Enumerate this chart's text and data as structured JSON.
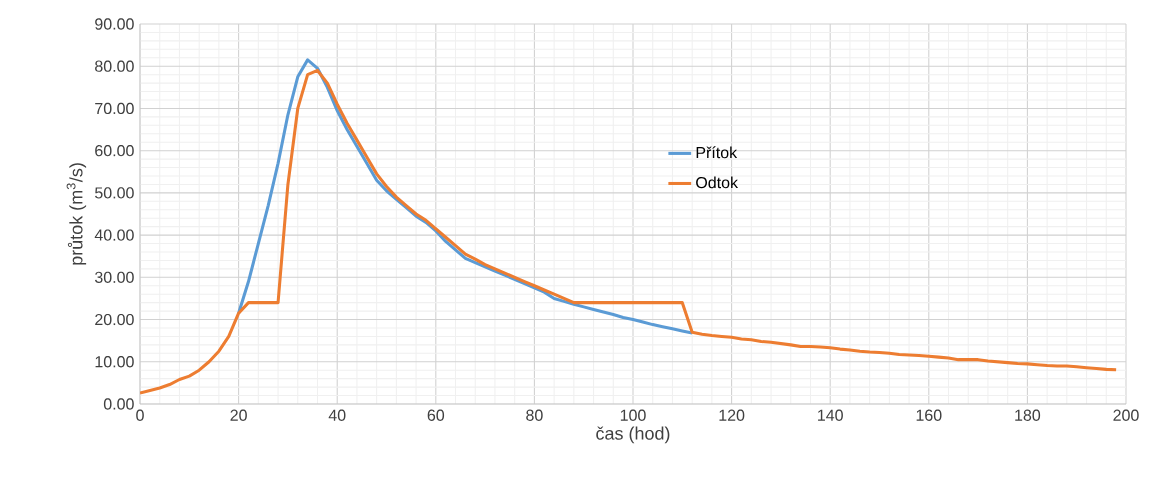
{
  "chart_data": {
    "type": "line",
    "xlabel": "čas (hod)",
    "ylabel": "průtok (m$^{3}$/s)",
    "x": [
      0,
      2,
      4,
      6,
      8,
      10,
      12,
      14,
      16,
      18,
      20,
      22,
      24,
      26,
      28,
      30,
      32,
      34,
      36,
      38,
      40,
      42,
      44,
      46,
      48,
      50,
      52,
      54,
      56,
      58,
      60,
      62,
      64,
      66,
      68,
      70,
      72,
      74,
      76,
      78,
      80,
      82,
      84,
      86,
      88,
      90,
      92,
      94,
      96,
      98,
      100,
      102,
      104,
      106,
      108,
      110,
      112,
      114,
      116,
      118,
      120,
      122,
      124,
      126,
      128,
      130,
      132,
      134,
      136,
      138,
      140,
      142,
      144,
      146,
      148,
      150,
      152,
      154,
      156,
      158,
      160,
      162,
      164,
      166,
      168,
      170,
      172,
      174,
      176,
      178,
      180,
      182,
      184,
      186,
      188,
      190,
      192,
      194,
      196,
      198
    ],
    "series": [
      {
        "name": "Přítok",
        "color": "#5b9bd5",
        "values": [
          null,
          null,
          null,
          null,
          null,
          null,
          null,
          null,
          null,
          null,
          21.5,
          29,
          38,
          47,
          57,
          68.5,
          77.5,
          81.5,
          79.5,
          75,
          69.5,
          65,
          61,
          57,
          53,
          50.5,
          48.5,
          46.5,
          44.5,
          43,
          41,
          38.5,
          36.5,
          34.5,
          33.5,
          32.5,
          31.5,
          30.5,
          29.5,
          28.5,
          27.5,
          26.5,
          25,
          24.3,
          23.6,
          23,
          22.4,
          21.8,
          21.2,
          20.5,
          20,
          19.4,
          18.8,
          18.3,
          17.8,
          17.3,
          16.8,
          null,
          null,
          null,
          null,
          null,
          null,
          null,
          null,
          null,
          null,
          null,
          null,
          null,
          null,
          null,
          null,
          null,
          null,
          null,
          null,
          null,
          null,
          null,
          null,
          null,
          null,
          null,
          null,
          null,
          null,
          null,
          null,
          null,
          null,
          null,
          null,
          null,
          null,
          null,
          null,
          null,
          null,
          null
        ]
      },
      {
        "name": "Odtok",
        "color": "#ed7d31",
        "values": [
          2.6,
          3.2,
          3.8,
          4.6,
          5.8,
          6.6,
          8,
          10,
          12.5,
          16,
          21.5,
          24,
          24,
          24,
          24,
          52,
          70,
          78,
          79,
          76,
          71,
          66.5,
          62.5,
          58.5,
          54.5,
          51.5,
          49,
          47,
          45,
          43.5,
          41.5,
          39.5,
          37.5,
          35.5,
          34.3,
          33,
          32,
          31,
          30,
          29,
          28,
          27,
          26,
          25,
          24,
          24,
          24,
          24,
          24,
          24,
          24,
          24,
          24,
          24,
          24,
          24,
          17,
          16.5,
          16.2,
          16,
          15.8,
          15.4,
          15.2,
          14.8,
          14.6,
          14.3,
          14,
          13.6,
          13.6,
          13.5,
          13.3,
          13,
          12.8,
          12.5,
          12.3,
          12.2,
          12,
          11.7,
          11.6,
          11.5,
          11.3,
          11.1,
          10.9,
          10.5,
          10.5,
          10.5,
          10.2,
          10,
          9.8,
          9.6,
          9.5,
          9.3,
          9.1,
          9,
          9,
          8.8,
          8.6,
          8.4,
          8.2,
          8.1
        ]
      }
    ],
    "xlim": [
      0,
      200
    ],
    "xticks": [
      0,
      20,
      40,
      60,
      80,
      100,
      120,
      140,
      160,
      180,
      200
    ],
    "ylim": [
      0,
      90
    ],
    "yticks": [
      {
        "value": 0,
        "label": "0.00"
      },
      {
        "value": 10,
        "label": "10.00"
      },
      {
        "value": 20,
        "label": "20.00"
      },
      {
        "value": 30,
        "label": "30.00"
      },
      {
        "value": 40,
        "label": "40.00"
      },
      {
        "value": 50,
        "label": "50.00"
      },
      {
        "value": 60,
        "label": "60.00"
      },
      {
        "value": 70,
        "label": "70.00"
      },
      {
        "value": 80,
        "label": "80.00"
      },
      {
        "value": 90,
        "label": "90.00"
      }
    ],
    "grid": true,
    "legend": "center",
    "marker": "none",
    "line_style": "solid"
  }
}
